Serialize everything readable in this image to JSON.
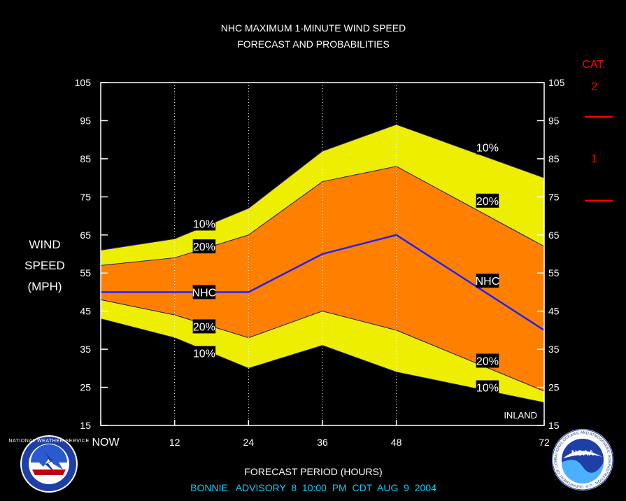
{
  "chart_data": {
    "type": "area",
    "title": "NHC MAXIMUM 1-MINUTE WIND SPEED",
    "subtitle": "FORECAST AND PROBABILITIES",
    "xlabel": "FORECAST PERIOD (HOURS)",
    "ylabel": [
      "WIND",
      "SPEED",
      "(MPH)"
    ],
    "x": [
      0,
      12,
      24,
      36,
      48,
      72
    ],
    "x_tick_labels": [
      "NOW",
      "12",
      "24",
      "36",
      "48",
      "72"
    ],
    "xlim": [
      0,
      72
    ],
    "y_ticks": [
      15,
      25,
      35,
      45,
      55,
      65,
      75,
      85,
      95,
      105
    ],
    "ylim": [
      15,
      105
    ],
    "grid": "vertical dotted at 12, 24, 36, 48",
    "series": [
      {
        "role": "upper-10",
        "values": [
          61,
          64,
          72,
          87,
          94,
          80
        ]
      },
      {
        "role": "upper-20",
        "values": [
          57,
          59,
          65,
          79,
          83,
          62
        ]
      },
      {
        "name": "NHC",
        "values": [
          50,
          50,
          50,
          60,
          65,
          40
        ]
      },
      {
        "role": "lower-20",
        "values": [
          48,
          44,
          38,
          45,
          40,
          24
        ]
      },
      {
        "role": "lower-10",
        "values": [
          43,
          38,
          30,
          36,
          29,
          21
        ]
      }
    ],
    "band_labels": [
      {
        "text": "10%",
        "x": 16,
        "y": 68
      },
      {
        "text": "20%",
        "x": 16,
        "y": 62
      },
      {
        "text": "NHC",
        "x": 16,
        "y": 50
      },
      {
        "text": "20%",
        "x": 16,
        "y": 41
      },
      {
        "text": "10%",
        "x": 16,
        "y": 34
      },
      {
        "text": "10%",
        "x": 62,
        "y": 88
      },
      {
        "text": "20%",
        "x": 62,
        "y": 74
      },
      {
        "text": "NHC",
        "x": 62,
        "y": 53
      },
      {
        "text": "20%",
        "x": 62,
        "y": 32
      },
      {
        "text": "10%",
        "x": 62,
        "y": 25
      }
    ],
    "annotation": "INLAND",
    "category_scale": {
      "title": "CAT.",
      "labels": [
        {
          "text": "2",
          "y": 104
        },
        {
          "text": "1",
          "y": 85
        }
      ],
      "thresholds": [
        96,
        74
      ]
    },
    "footer": "BONNIE   ADVISORY  8  10:00  PM  CDT  AUG  9  2004"
  },
  "colors": {
    "background": "#000000",
    "outer_band": "#eeee00",
    "inner_band": "#ff8000",
    "nhc_line": "#2020ff",
    "category": "#ff0000",
    "footer": "#00d0ff",
    "text": "#ffffff"
  },
  "logos": {
    "left": {
      "icon": "nws-logo-icon",
      "text": "NATIONAL WEATHER SERVICE"
    },
    "right": {
      "icon": "noaa-logo-icon",
      "text": "NOAA",
      "ring_text": "NATIONAL OCEANIC AND ATMOSPHERIC ADMINISTRATION · U.S. DEPARTMENT OF COMMERCE"
    }
  }
}
